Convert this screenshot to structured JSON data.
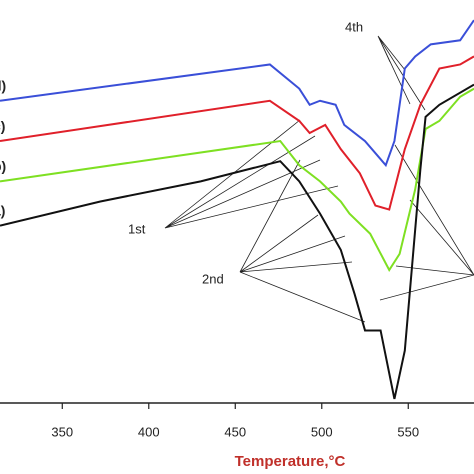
{
  "chart_data": {
    "type": "line",
    "x_label": "Temperature,°C",
    "xlim": [
      314,
      588
    ],
    "xticks": [
      350,
      400,
      450,
      500,
      550
    ],
    "ylim": [
      0,
      100
    ],
    "annotations": [
      "1st",
      "2nd",
      "4th"
    ],
    "series": [
      {
        "name": "d)",
        "color": "#3a4fd8",
        "x": [
          314,
          470,
          487,
          493,
          499,
          508,
          513,
          525,
          537,
          542,
          548,
          554,
          563,
          580,
          588
        ],
        "values": [
          75,
          84,
          78,
          74,
          75,
          74,
          69,
          65,
          59,
          65,
          83,
          86,
          89,
          90,
          95
        ]
      },
      {
        "name": "c)",
        "color": "#e0202a",
        "x": [
          314,
          470,
          487,
          493,
          502,
          511,
          522,
          531,
          539,
          548,
          557,
          568,
          580,
          588
        ],
        "values": [
          65,
          75,
          70,
          67,
          69,
          63,
          57,
          49,
          48,
          63,
          74,
          83,
          84,
          86
        ]
      },
      {
        "name": "b)",
        "color": "#7ee022",
        "x": [
          314,
          476,
          487,
          499,
          511,
          516,
          528,
          539,
          545,
          554,
          560,
          568,
          580,
          588
        ],
        "values": [
          55,
          65,
          59,
          55,
          50,
          47,
          42,
          33,
          37,
          53,
          68,
          70,
          76,
          78
        ]
      },
      {
        "name": "a)",
        "color": "#111111",
        "x": [
          314,
          372,
          430,
          476,
          487,
          499,
          511,
          519,
          525,
          534,
          542,
          548,
          557,
          560,
          568,
          588
        ],
        "values": [
          44,
          50,
          55,
          60,
          55,
          47,
          38,
          27,
          18,
          18,
          1,
          13,
          58,
          71,
          74,
          79
        ]
      }
    ]
  }
}
